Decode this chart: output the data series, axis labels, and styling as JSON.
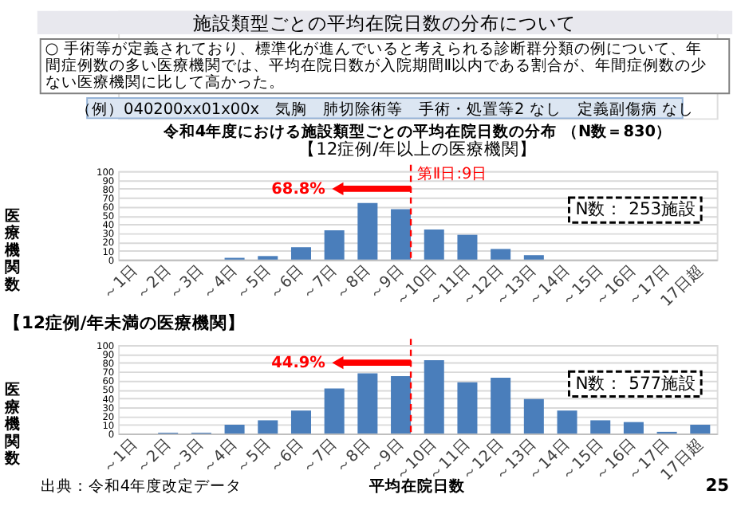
{
  "chart_data": [
    {
      "type": "bar",
      "title": "令和4年度における施設類型ごとの平均在院日数の分布 （N数＝830）",
      "subtitle": "【12症例/年以上の医療機関】",
      "ylabel": "医療機関数",
      "categories": [
        "～1日",
        "～2日",
        "～3日",
        "～4日",
        "～5日",
        "～6日",
        "～7日",
        "～8日",
        "～9日",
        "～10日",
        "～11日",
        "～12日",
        "～13日",
        "～14日",
        "～15日",
        "～16日",
        "～17日",
        "17日超"
      ],
      "values": [
        0,
        0,
        0,
        2,
        4,
        14,
        33,
        64,
        57,
        34,
        28,
        12,
        5,
        0,
        0,
        0,
        0,
        0
      ],
      "color": "#4a7ebb",
      "ylim": [
        0,
        100
      ],
      "yticks": [
        0,
        10,
        20,
        30,
        40,
        50,
        60,
        70,
        80,
        90,
        100
      ],
      "grid": "y",
      "ref_lines": [
        {
          "axis": "x",
          "value": "～9日",
          "label": "第Ⅱ日:9日",
          "color": "#ff0000",
          "line_style": "dashed"
        }
      ],
      "annotations": [
        "施設類型ごとの平均在院日数の分布について",
        "○ 手術等が定義されており、標準化が進んでいると考えられる診断群分類の例について、年間症例数の多い医療機関では、平均在院日数が入院期間Ⅱ以内である割合が、年間症例数の少ない医療機関に比して高かった。",
        "（例）040200xx01x00x　気胸　肺切除術等　手術・処置等2 なし　定義副傷病 なし",
        "68.8%",
        "N数：  253施設"
      ]
    },
    {
      "type": "bar",
      "subtitle": "【12症例/年未満の医療機関】",
      "ylabel": "医療機関数",
      "xlabel": "平均在院日数",
      "categories": [
        "～1日",
        "～2日",
        "～3日",
        "～4日",
        "～5日",
        "～6日",
        "～7日",
        "～8日",
        "～9日",
        "～10日",
        "～11日",
        "～12日",
        "～13日",
        "～14日",
        "～15日",
        "～16日",
        "～17日",
        "17日超"
      ],
      "values": [
        0,
        1,
        1,
        10,
        15,
        26,
        51,
        68,
        65,
        83,
        58,
        63,
        39,
        26,
        15,
        13,
        2,
        10
      ],
      "color": "#4a7ebb",
      "ylim": [
        0,
        100
      ],
      "yticks": [
        0,
        10,
        20,
        30,
        40,
        50,
        60,
        70,
        80,
        90,
        100
      ],
      "grid": "y",
      "ref_lines": [
        {
          "axis": "x",
          "value": "～9日",
          "color": "#ff0000",
          "line_style": "dashed"
        }
      ],
      "annotations": [
        "44.9%",
        "N数：  577施設",
        "出典：令和4年度改定データ",
        "25"
      ]
    }
  ]
}
